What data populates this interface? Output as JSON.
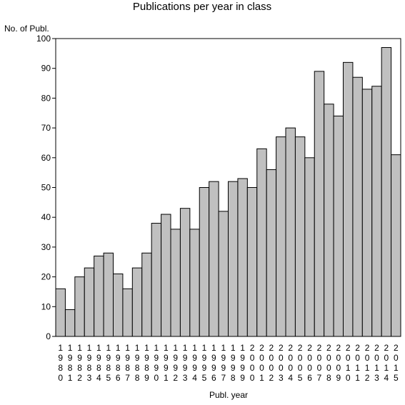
{
  "chart_data": {
    "type": "bar",
    "title": "Publications per year in class",
    "ylabel": "No. of Publ.",
    "xlabel": "Publ. year",
    "ylim": [
      0,
      100
    ],
    "yticks": [
      0,
      10,
      20,
      30,
      40,
      50,
      60,
      70,
      80,
      90,
      100
    ],
    "grid": false,
    "colors": {
      "bar": "#c0c0c0",
      "outline": "#000000"
    },
    "categories": [
      "1980",
      "1981",
      "1982",
      "1983",
      "1984",
      "1985",
      "1986",
      "1987",
      "1988",
      "1989",
      "1990",
      "1991",
      "1992",
      "1993",
      "1994",
      "1995",
      "1996",
      "1997",
      "1998",
      "1999",
      "2000",
      "2001",
      "2002",
      "2003",
      "2004",
      "2005",
      "2006",
      "2007",
      "2008",
      "2009",
      "2010",
      "2011",
      "2012",
      "2013",
      "2014",
      "2015"
    ],
    "values": [
      16,
      9,
      20,
      23,
      27,
      28,
      21,
      16,
      23,
      28,
      38,
      41,
      36,
      43,
      36,
      50,
      52,
      42,
      52,
      53,
      50,
      63,
      56,
      67,
      70,
      67,
      60,
      89,
      78,
      74,
      92,
      87,
      83,
      84,
      97,
      61
    ]
  }
}
